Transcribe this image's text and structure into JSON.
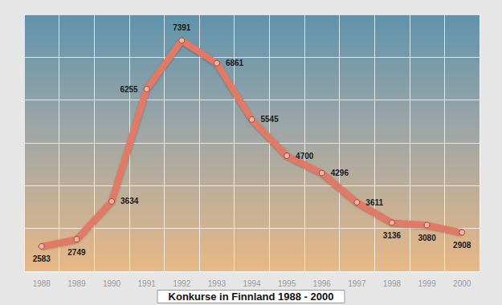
{
  "chart_data": {
    "type": "line",
    "title": "Konkurse in Finnland 1988 - 2000",
    "categories": [
      "1988",
      "1989",
      "1990",
      "1991",
      "1992",
      "1993",
      "1994",
      "1995",
      "1996",
      "1997",
      "1998",
      "1999",
      "2000"
    ],
    "values": [
      2583,
      2749,
      3634,
      6255,
      7391,
      6861,
      5545,
      4700,
      4296,
      3611,
      3136,
      3080,
      2908
    ],
    "color": "#e07a66",
    "ylim": [
      2000,
      8000
    ],
    "yticks": [
      2000,
      3000,
      4000,
      5000,
      6000,
      7000,
      8000
    ],
    "grid": true,
    "data_labels": true,
    "tick_labels": "x"
  }
}
